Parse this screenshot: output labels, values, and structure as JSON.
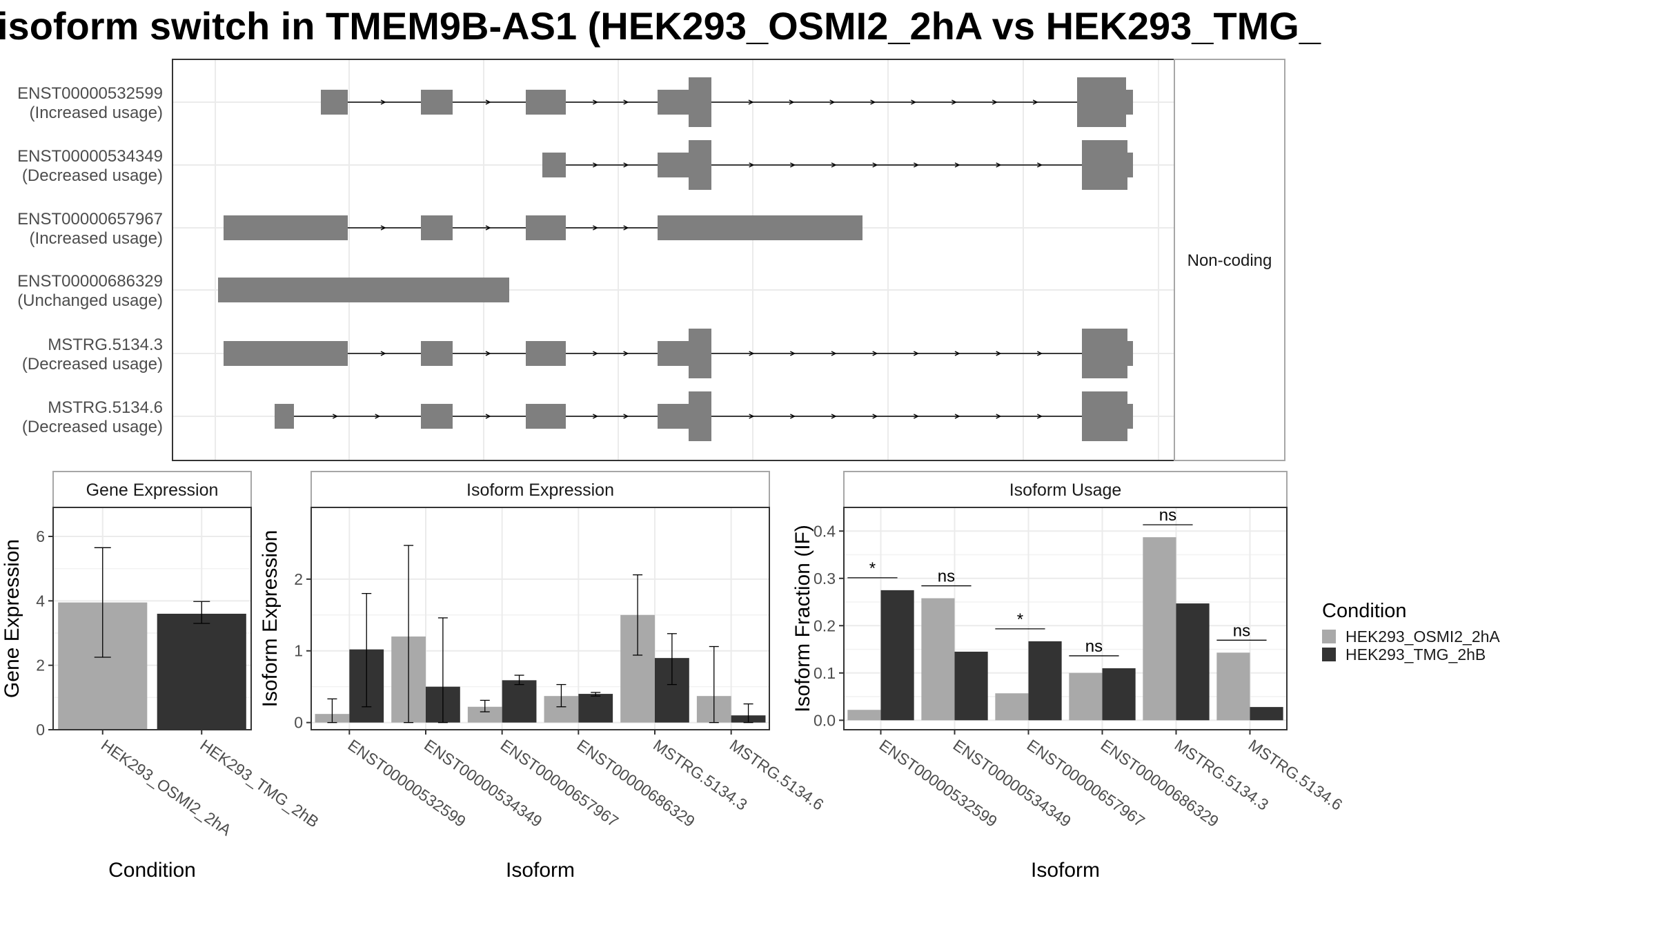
{
  "title": "isoform switch in TMEM9B-AS1 (HEK293_OSMI2_2hA vs HEK293_TMG_",
  "colors": {
    "cond_a": "#a9a9a9",
    "cond_b": "#333333",
    "exon": "#7f7f7f",
    "grid": "#ebebeb",
    "border": "#333333",
    "strip_border": "#a6a6a6"
  },
  "chart_data": [
    {
      "type": "gene-structure",
      "strip_label": "Non-coding",
      "rows": [
        {
          "id": "ENST00000532599",
          "usage": "(Increased usage)"
        },
        {
          "id": "ENST00000534349",
          "usage": "(Decreased usage)"
        },
        {
          "id": "ENST00000657967",
          "usage": "(Increased usage)"
        },
        {
          "id": "ENST00000686329",
          "usage": "(Unchanged usage)"
        },
        {
          "id": "MSTRG.5134.3",
          "usage": "(Decreased usage)"
        },
        {
          "id": "MSTRG.5134.6",
          "usage": "(Decreased usage)"
        }
      ]
    },
    {
      "type": "bar",
      "facet": "Gene Expression",
      "xlabel": "Condition",
      "ylabel": "Gene Expression",
      "yticks": [
        0,
        2,
        4,
        6
      ],
      "ylim": [
        0,
        6.9
      ],
      "categories": [
        "HEK293_OSMI2_2hA",
        "HEK293_TMG_2hB"
      ],
      "values": [
        3.95,
        3.6
      ],
      "errors": [
        [
          2.25,
          5.65
        ],
        [
          3.3,
          3.98
        ]
      ]
    },
    {
      "type": "bar",
      "facet": "Isoform Expression",
      "xlabel": "Isoform",
      "ylabel": "Isoform Expression",
      "yticks": [
        0,
        1,
        2
      ],
      "ylim": [
        -0.1,
        3.0
      ],
      "categories": [
        "ENST00000532599",
        "ENST00000534349",
        "ENST00000657967",
        "ENST00000686329",
        "MSTRG.5134.3",
        "MSTRG.5134.6"
      ],
      "series": [
        {
          "name": "HEK293_OSMI2_2hA",
          "values": [
            0.12,
            1.2,
            0.22,
            0.37,
            1.5,
            0.37
          ],
          "errors": [
            [
              0.0,
              0.33
            ],
            [
              0.0,
              2.47
            ],
            [
              0.15,
              0.31
            ],
            [
              0.22,
              0.53
            ],
            [
              0.94,
              2.06
            ],
            [
              0.0,
              1.06
            ]
          ]
        },
        {
          "name": "HEK293_TMG_2hB",
          "values": [
            1.02,
            0.5,
            0.59,
            0.4,
            0.9,
            0.1
          ],
          "errors": [
            [
              0.22,
              1.8
            ],
            [
              0.0,
              1.46
            ],
            [
              0.53,
              0.66
            ],
            [
              0.37,
              0.42
            ],
            [
              0.53,
              1.24
            ],
            [
              0.0,
              0.26
            ]
          ]
        }
      ]
    },
    {
      "type": "bar",
      "facet": "Isoform Usage",
      "xlabel": "Isoform",
      "ylabel": "Isoform Fraction (IF)",
      "yticks": [
        0.0,
        0.1,
        0.2,
        0.3,
        0.4
      ],
      "ylim": [
        -0.02,
        0.45
      ],
      "categories": [
        "ENST00000532599",
        "ENST00000534349",
        "ENST00000657967",
        "ENST00000686329",
        "MSTRG.5134.3",
        "MSTRG.5134.6"
      ],
      "series": [
        {
          "name": "HEK293_OSMI2_2hA",
          "values": [
            0.022,
            0.258,
            0.057,
            0.1,
            0.387,
            0.143
          ]
        },
        {
          "name": "HEK293_TMG_2hB",
          "values": [
            0.275,
            0.145,
            0.167,
            0.11,
            0.247,
            0.028
          ]
        }
      ],
      "significance": [
        "*",
        "ns",
        "*",
        "ns",
        "ns",
        "ns"
      ]
    }
  ],
  "legend": {
    "title": "Condition",
    "items": [
      {
        "label": "HEK293_OSMI2_2hA",
        "color": "#a9a9a9"
      },
      {
        "label": "HEK293_TMG_2hB",
        "color": "#333333"
      }
    ]
  }
}
